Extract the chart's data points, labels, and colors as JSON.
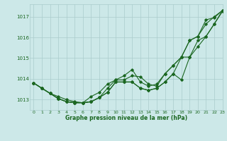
{
  "title": "Graphe pression niveau de la mer (hPa)",
  "bg_color": "#cce8e8",
  "grid_color": "#aacccc",
  "line_color": "#1a6620",
  "xlim": [
    -0.5,
    23
  ],
  "ylim": [
    1012.5,
    1017.6
  ],
  "yticks": [
    1013,
    1014,
    1015,
    1016,
    1017
  ],
  "xticks": [
    0,
    1,
    2,
    3,
    4,
    5,
    6,
    7,
    8,
    9,
    10,
    11,
    12,
    13,
    14,
    15,
    16,
    17,
    18,
    19,
    20,
    21,
    22,
    23
  ],
  "series": [
    [
      1013.8,
      1013.55,
      1013.3,
      1013.05,
      1012.9,
      1012.85,
      1012.85,
      1012.9,
      1013.1,
      1013.35,
      1013.85,
      1013.85,
      1013.85,
      1013.55,
      1013.45,
      1013.55,
      1013.85,
      1014.25,
      1013.95,
      1015.05,
      1015.55,
      1016.05,
      1016.65,
      1017.25
    ],
    [
      1013.8,
      1013.55,
      1013.3,
      1013.05,
      1012.9,
      1012.85,
      1012.85,
      1012.9,
      1013.1,
      1013.35,
      1013.85,
      1013.85,
      1013.85,
      1013.55,
      1013.45,
      1013.55,
      1013.85,
      1014.25,
      1015.05,
      1015.85,
      1016.05,
      1016.65,
      1017.0,
      1017.3
    ],
    [
      1013.8,
      1013.55,
      1013.3,
      1013.05,
      1012.9,
      1012.85,
      1012.85,
      1012.9,
      1013.1,
      1013.55,
      1013.95,
      1013.95,
      1014.15,
      1014.1,
      1013.75,
      1013.65,
      1014.25,
      1014.65,
      1015.05,
      1015.05,
      1015.85,
      1016.05,
      1016.65,
      1017.3
    ],
    [
      1013.8,
      1013.55,
      1013.3,
      1013.15,
      1013.0,
      1012.9,
      1012.85,
      1013.15,
      1013.35,
      1013.75,
      1013.95,
      1014.15,
      1014.45,
      1013.85,
      1013.65,
      1013.75,
      1014.25,
      1014.65,
      1015.05,
      1015.85,
      1016.05,
      1016.85,
      1016.95,
      1017.3
    ]
  ]
}
